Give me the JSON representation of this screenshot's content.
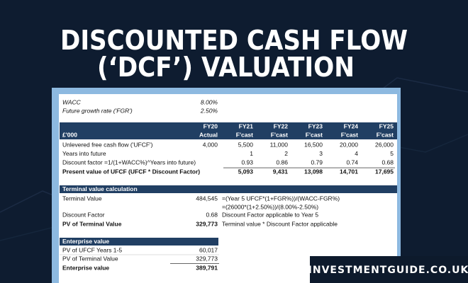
{
  "header": {
    "title_line1": "DISCOUNTED CASH FLOW",
    "title_line2": "(‘DCF’) VALUATION"
  },
  "assumptions": {
    "rows": [
      [
        "WACC",
        "8.00%"
      ],
      [
        "Future growth rate ('FGR')",
        "2.50%"
      ]
    ]
  },
  "forecast_table": {
    "unit": "£'000",
    "years": [
      "FY20",
      "FY21",
      "FY22",
      "FY23",
      "FY24",
      "FY25"
    ],
    "types": [
      "Actual",
      "F'cast",
      "F'cast",
      "F'cast",
      "F'cast",
      "F'cast"
    ],
    "rows": [
      {
        "label": "Unlevered free cash flow ('UFCF')",
        "values": [
          "4,000",
          "5,500",
          "11,000",
          "16,500",
          "20,000",
          "26,000"
        ]
      },
      {
        "label": "Years into future",
        "values": [
          "1",
          "2",
          "3",
          "4",
          "5"
        ]
      },
      {
        "label": "Discount factor =1/(1+WACC%)^Years into future)",
        "values": [
          "0.93",
          "0.86",
          "0.79",
          "0.74",
          "0.68"
        ]
      },
      {
        "label": "Present value of UFCF (UFCF * Discount Factor)",
        "values": [
          "5,093",
          "9,431",
          "13,098",
          "14,701",
          "17,695"
        ]
      }
    ]
  },
  "terminal_value": {
    "title": "Terminal value calculation",
    "rows": [
      {
        "label": "Terminal Value",
        "value": "484,545",
        "note": "=(Year 5 UFCF*(1+FGR%))/(WACC-FGR%)"
      },
      {
        "note": "=(26000*(1+2.50%))/(8.00%-2.50%)"
      },
      {
        "label": "Discount Factor",
        "value": "0.68",
        "note": "Discount Factor applicable to Year 5"
      },
      {
        "label": "PV of Terminal Value",
        "value": "329,773",
        "note": "Terminal value * Discount Factor applicable"
      }
    ]
  },
  "enterprise_value": {
    "title": "Enterprise value",
    "rows": [
      {
        "label": "PV of UFCF Years 1-5",
        "value": "60,017"
      },
      {
        "label": "PV of Terminal Value",
        "value": "329,773"
      },
      {
        "label": "Enterprise value",
        "value": "389,791"
      }
    ]
  },
  "footer": {
    "site": "INVESTMENTGUIDE.CO.UK"
  }
}
